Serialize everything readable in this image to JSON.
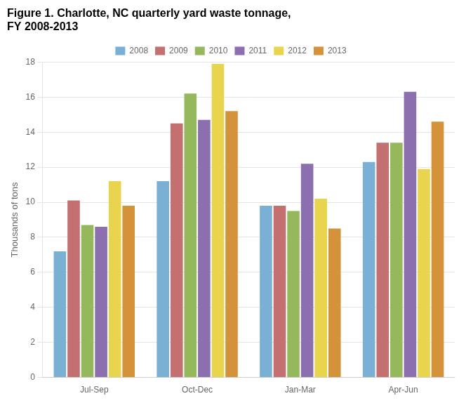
{
  "chart_data": {
    "type": "bar",
    "title": "Figure 1. Charlotte, NC quarterly yard waste tonnage,\nFY 2008-2013",
    "ylabel": "Thousands of tons",
    "categories": [
      "Jul-Sep",
      "Oct-Dec",
      "Jan-Mar",
      "Apr-Jun"
    ],
    "series": [
      {
        "name": "2008",
        "color": "#7ab0d4",
        "values": [
          7.2,
          11.2,
          9.8,
          12.3
        ]
      },
      {
        "name": "2009",
        "color": "#c47070",
        "values": [
          10.1,
          14.5,
          9.8,
          13.4
        ]
      },
      {
        "name": "2010",
        "color": "#96b85c",
        "values": [
          8.7,
          16.2,
          9.5,
          13.4
        ]
      },
      {
        "name": "2011",
        "color": "#8b6fae",
        "values": [
          8.6,
          14.7,
          12.2,
          16.3
        ]
      },
      {
        "name": "2012",
        "color": "#e8d44d",
        "values": [
          11.2,
          17.9,
          10.2,
          11.9
        ]
      },
      {
        "name": "2013",
        "color": "#d4923a",
        "values": [
          9.8,
          15.2,
          8.5,
          14.6
        ]
      }
    ],
    "ylim": [
      0,
      18
    ],
    "yticks": [
      0,
      2,
      4,
      6,
      8,
      10,
      12,
      14,
      16,
      18
    ],
    "grid": true,
    "legend": "top"
  }
}
